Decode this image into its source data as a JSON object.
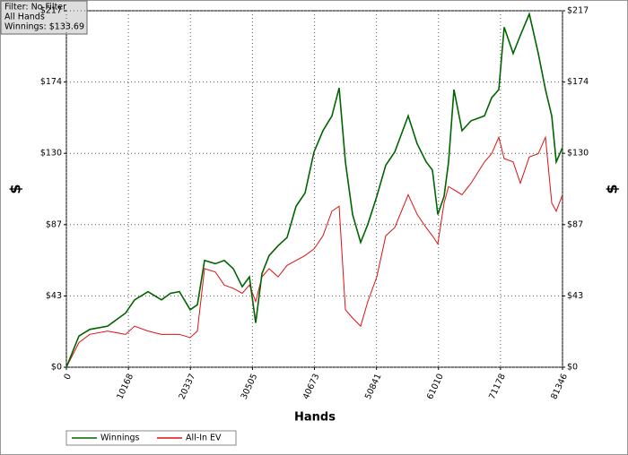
{
  "info": {
    "lines": [
      "Filter: No Filter",
      "All Hands",
      "Winnings: $133.69"
    ]
  },
  "chart_data": {
    "type": "line",
    "xlabel": "Hands",
    "ylabel": "$",
    "y2label": "$",
    "x": [
      0,
      2059,
      3825,
      6767,
      9709,
      11180,
      13386,
      15593,
      17064,
      18535,
      20300,
      21477,
      22654,
      24419,
      25890,
      27361,
      28833,
      30008,
      31038,
      32068,
      33245,
      34716,
      36187,
      37658,
      39129,
      40600,
      42071,
      43542,
      44719,
      45748,
      46925,
      48249,
      49426,
      50897,
      52368,
      53839,
      56045,
      57516,
      58987,
      60017,
      60900,
      61929,
      62665,
      63547,
      64871,
      66342,
      68549,
      69726,
      70902,
      71785,
      73256,
      74433,
      75904,
      77375,
      78552,
      79581,
      80317,
      81346
    ],
    "series": [
      {
        "name": "Winnings",
        "color": "#006400",
        "values": [
          0,
          19,
          23,
          25,
          33,
          41,
          46,
          41,
          45,
          46,
          35,
          38,
          65,
          63,
          65,
          60,
          49,
          55,
          27,
          57,
          68,
          74,
          79,
          98,
          106,
          131,
          144,
          153,
          170,
          125,
          93,
          76,
          87,
          104,
          123,
          131,
          153,
          136,
          125,
          120,
          93,
          104,
          125,
          169,
          144,
          150,
          153,
          164,
          169,
          207,
          191,
          202,
          215,
          191,
          169,
          153,
          125,
          133.69
        ]
      },
      {
        "name": "All-In EV",
        "color": "#dd1111",
        "values": [
          0,
          15,
          20,
          22,
          20,
          25,
          22,
          20,
          20,
          20,
          18,
          22,
          60,
          58,
          50,
          48,
          45,
          50,
          40,
          55,
          60,
          55,
          62,
          65,
          68,
          72,
          80,
          95,
          98,
          35,
          30,
          25,
          40,
          55,
          80,
          85,
          105,
          93,
          85,
          80,
          75,
          100,
          110,
          108,
          105,
          112,
          125,
          130,
          140,
          127,
          125,
          112,
          128,
          130,
          140,
          100,
          95,
          105
        ]
      }
    ],
    "xlim": [
      0,
      81346
    ],
    "xticks": [
      0,
      10168,
      20337,
      30505,
      40673,
      50841,
      61010,
      71178,
      81346
    ],
    "ylim": [
      0,
      217
    ],
    "yticks": [
      {
        "value": 0,
        "label": "$0"
      },
      {
        "value": 43.4,
        "label": "$43"
      },
      {
        "value": 86.8,
        "label": "$87"
      },
      {
        "value": 130.2,
        "label": "$130"
      },
      {
        "value": 173.6,
        "label": "$174"
      },
      {
        "value": 217,
        "label": "$217"
      }
    ],
    "y2lim": [
      0,
      217
    ],
    "y2ticks": [
      {
        "value": 0,
        "label": "$0"
      },
      {
        "value": 43.4,
        "label": "$43"
      },
      {
        "value": 86.8,
        "label": "$87"
      },
      {
        "value": 130.2,
        "label": "$130"
      },
      {
        "value": 173.6,
        "label": "$174"
      },
      {
        "value": 217,
        "label": "$217"
      }
    ],
    "grid": true,
    "legend": "bottom-left"
  }
}
